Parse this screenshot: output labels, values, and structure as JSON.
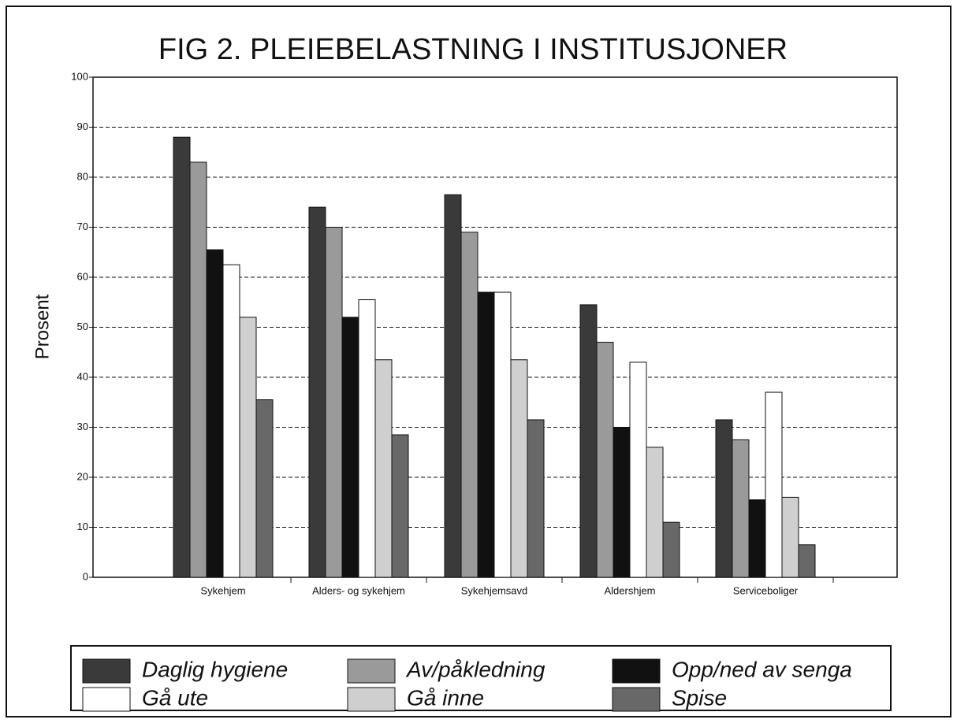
{
  "chart_data": {
    "type": "bar",
    "title": "FIG 2. PLEIEBELASTNING I INSTITUSJONER",
    "y_label": "Prosent",
    "categories": [
      "Sykehjem",
      "Alders- og sykehjem",
      "Sykehjemsavd",
      "Aldershjem",
      "Serviceboliger"
    ],
    "series": [
      {
        "name": "Daglig hygiene",
        "color": "#3a3a3a",
        "values": [
          88,
          74,
          76.5,
          54.5,
          31.5
        ]
      },
      {
        "name": "Av/påkledning",
        "color": "#9a9a9a",
        "values": [
          83,
          70,
          69,
          47,
          27.5
        ]
      },
      {
        "name": "Opp/ned av senga",
        "color": "#111111",
        "values": [
          65.5,
          52,
          57,
          30,
          15.5
        ]
      },
      {
        "name": "Gå ute",
        "color": "#ffffff",
        "values": [
          62.5,
          55.5,
          57,
          43,
          37
        ]
      },
      {
        "name": "Gå inne",
        "color": "#cfcfcf",
        "values": [
          52,
          43.5,
          43.5,
          26,
          16
        ]
      },
      {
        "name": "Spise",
        "color": "#686868",
        "values": [
          35.5,
          28.5,
          31.5,
          11,
          6.5
        ]
      }
    ],
    "ylim": [
      0,
      100
    ],
    "yticks": [
      0,
      10,
      20,
      30,
      40,
      50,
      60,
      70,
      80,
      90,
      100
    ],
    "grid": true
  }
}
